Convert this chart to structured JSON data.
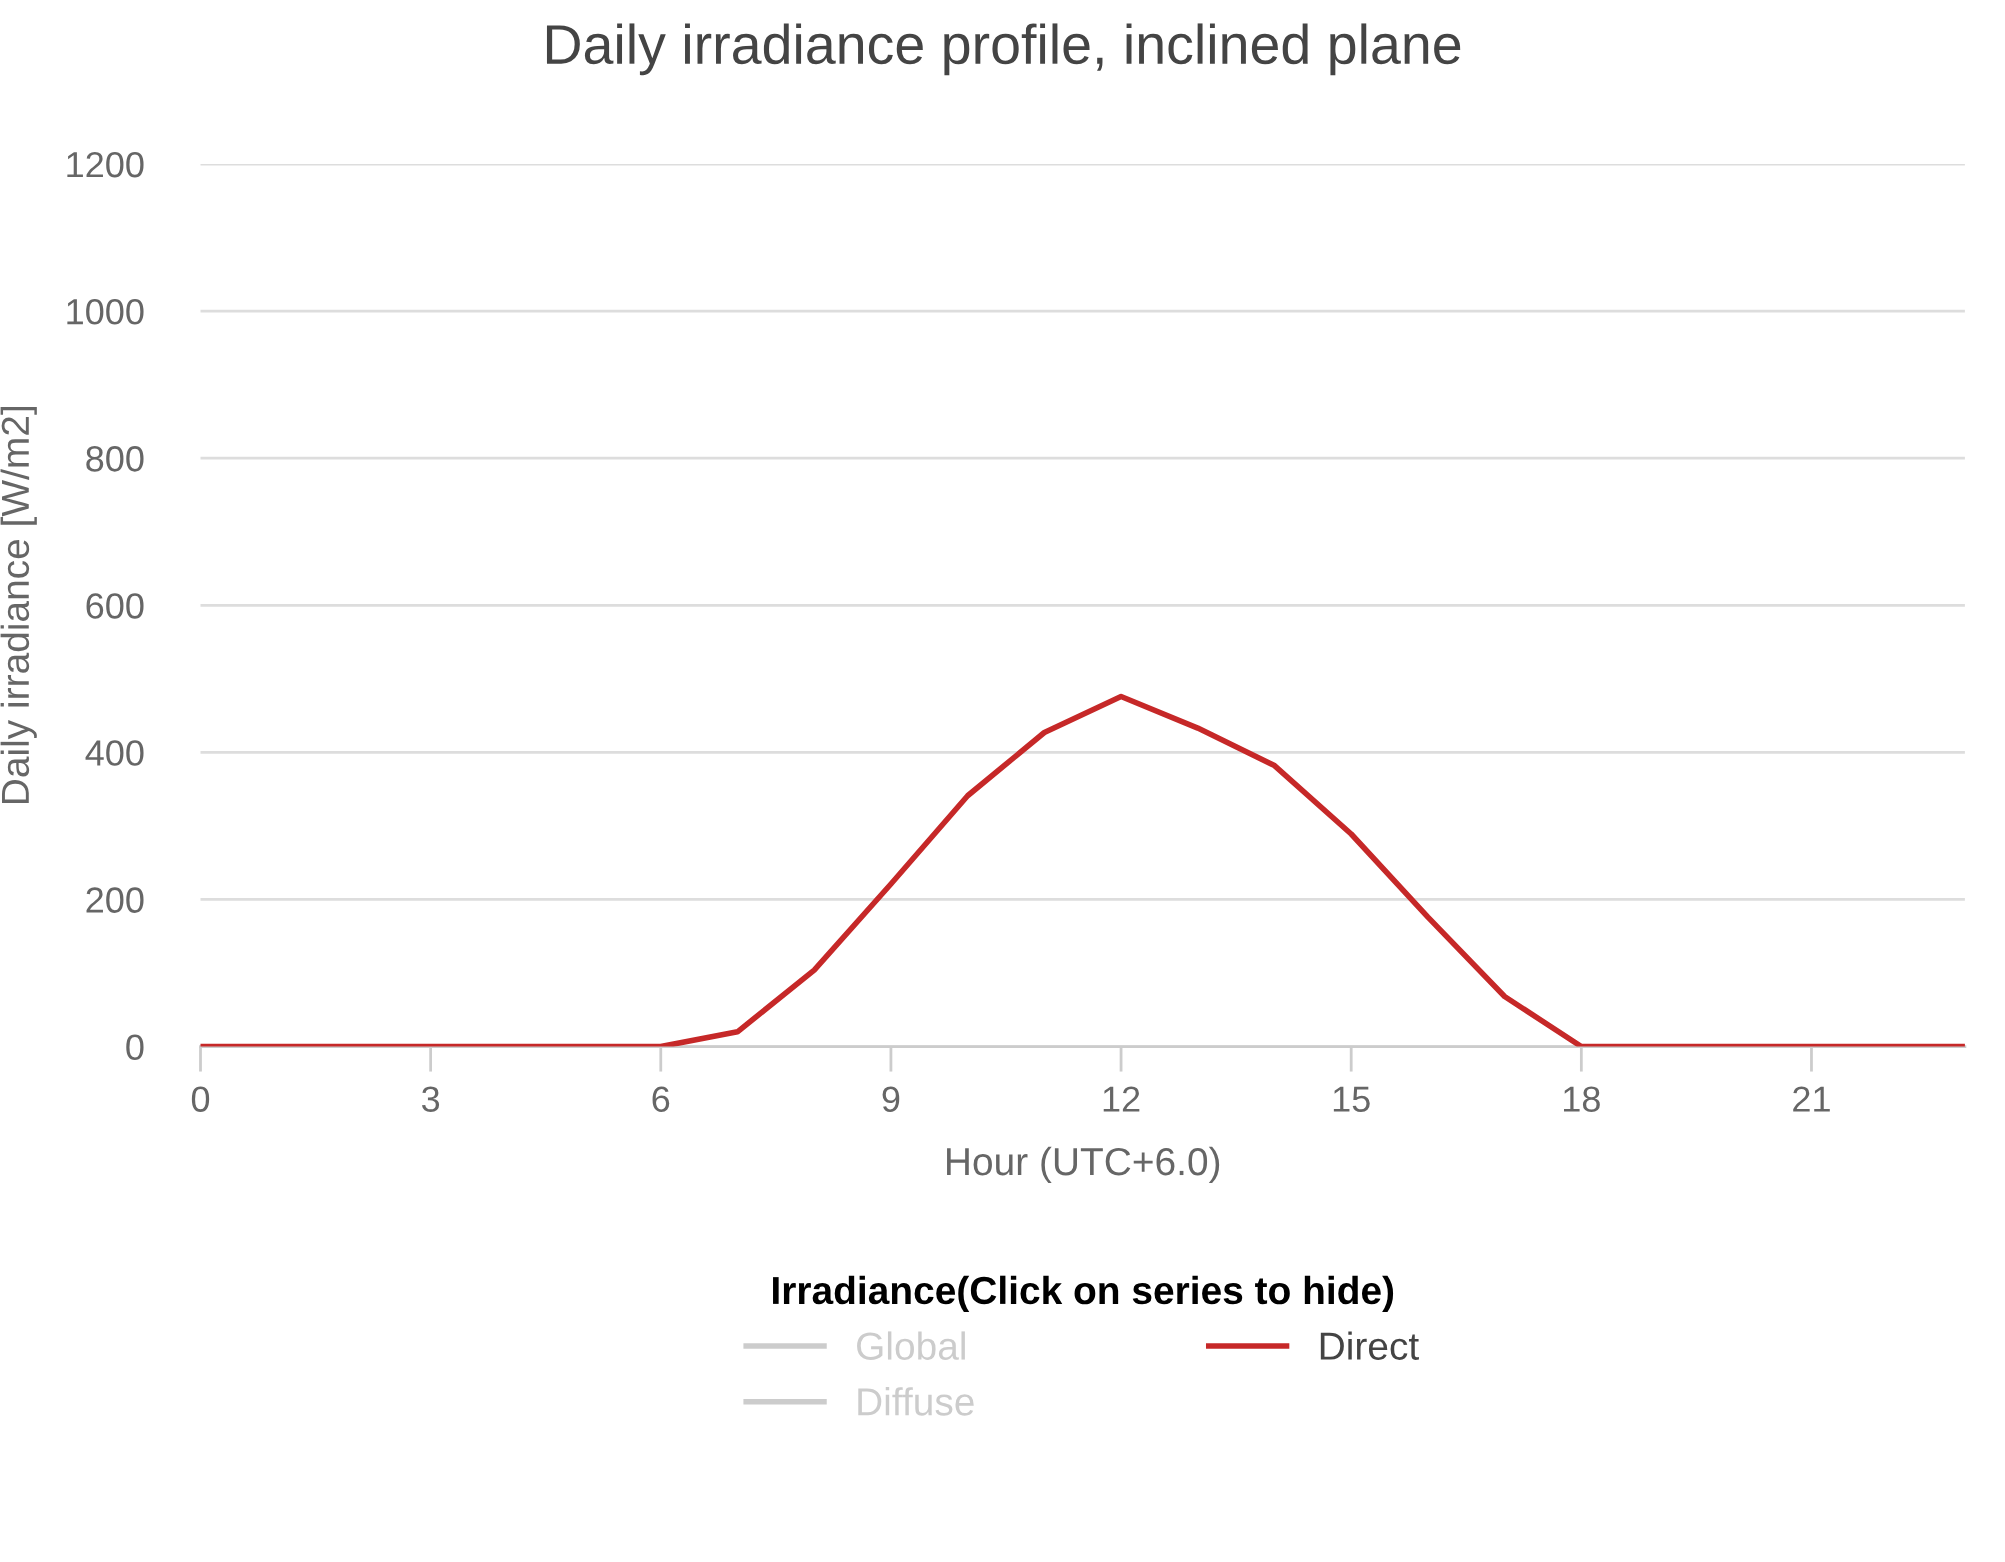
{
  "chart_data": {
    "type": "line",
    "title": "Daily irradiance profile, inclined plane",
    "xlabel": "Hour (UTC+6.0)",
    "ylabel": "Daily irradiance [W/m2]",
    "legend_title": "Irradiance(Click on series to hide)",
    "x": [
      0,
      1,
      2,
      3,
      4,
      5,
      6,
      7,
      8,
      9,
      10,
      11,
      12,
      13,
      14,
      15,
      16,
      17,
      18,
      19,
      20,
      21,
      22,
      23
    ],
    "series": [
      {
        "name": "Global",
        "color": "#cccccc",
        "values": [
          null,
          null,
          null,
          null,
          null,
          null,
          null,
          null,
          null,
          null,
          null,
          null,
          null,
          null,
          null,
          null,
          null,
          null,
          null,
          null,
          null,
          null,
          null,
          null
        ]
      },
      {
        "name": "Diffuse",
        "color": "#cccccc",
        "values": [
          null,
          null,
          null,
          null,
          null,
          null,
          null,
          null,
          null,
          null,
          null,
          null,
          null,
          null,
          null,
          null,
          null,
          null,
          null,
          null,
          null,
          null,
          null,
          null
        ]
      },
      {
        "name": "Direct",
        "color": "#c62828",
        "values": [
          0,
          0,
          0,
          0,
          0,
          0,
          0,
          20,
          104,
          221,
          341,
          427,
          476,
          433,
          382,
          289,
          176,
          68,
          0,
          0,
          0,
          0,
          0,
          0
        ]
      }
    ],
    "xlim": [
      0,
      23
    ],
    "xticks": [
      0,
      3,
      6,
      9,
      12,
      15,
      18,
      21
    ],
    "ylim": [
      0,
      1200
    ],
    "yticks": [
      0,
      200,
      400,
      600,
      800,
      1000,
      1200
    ],
    "grid": "y",
    "legend": "bottom",
    "marker": "none",
    "line_style": "solid"
  }
}
